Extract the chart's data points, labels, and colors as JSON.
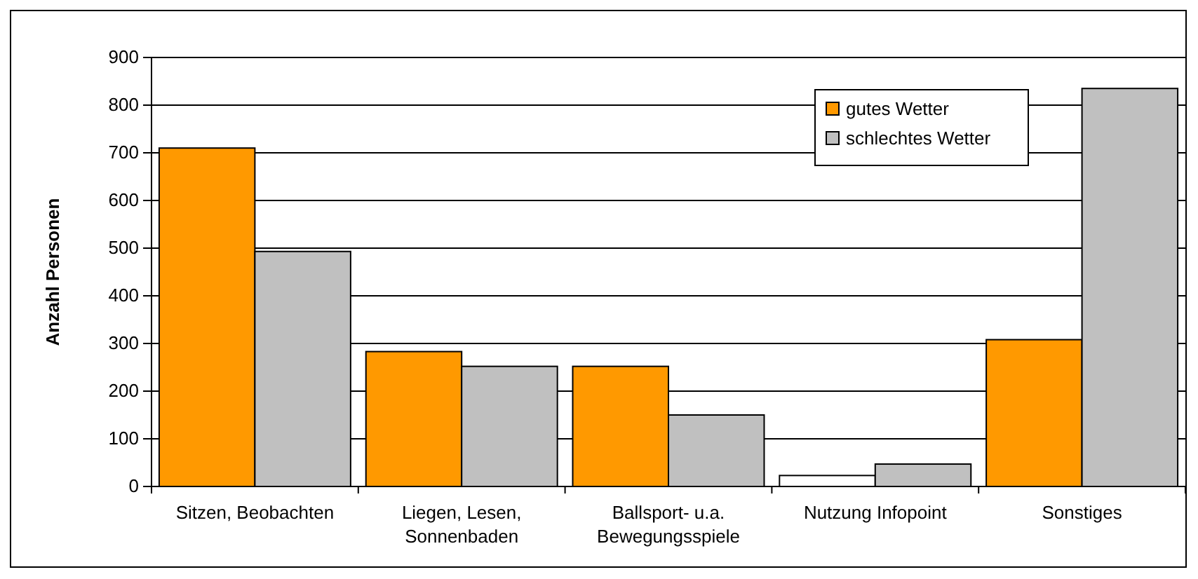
{
  "chart_data": {
    "type": "bar",
    "ylabel": "Anzahl Personen",
    "categories": [
      "Sitzen, Beobachten",
      "Liegen, Lesen, Sonnenbaden",
      "Ballsport- u.a. Bewegungsspiele",
      "Nutzung Infopoint",
      "Sonstiges"
    ],
    "series": [
      {
        "name": "gutes Wetter",
        "color": "#ff9900",
        "colors": [
          "#ff9900",
          "#ff9900",
          "#ff9900",
          "#ffffff",
          "#ff9900"
        ],
        "values": [
          710,
          283,
          252,
          23,
          308
        ]
      },
      {
        "name": "schlechtes Wetter",
        "color": "#c0c0c0",
        "values": [
          493,
          252,
          150,
          47,
          835
        ]
      }
    ],
    "ylim": [
      0,
      900
    ],
    "yticks": [
      0,
      100,
      200,
      300,
      400,
      500,
      600,
      700,
      800,
      900
    ],
    "grid": "y",
    "legend": "top right"
  }
}
